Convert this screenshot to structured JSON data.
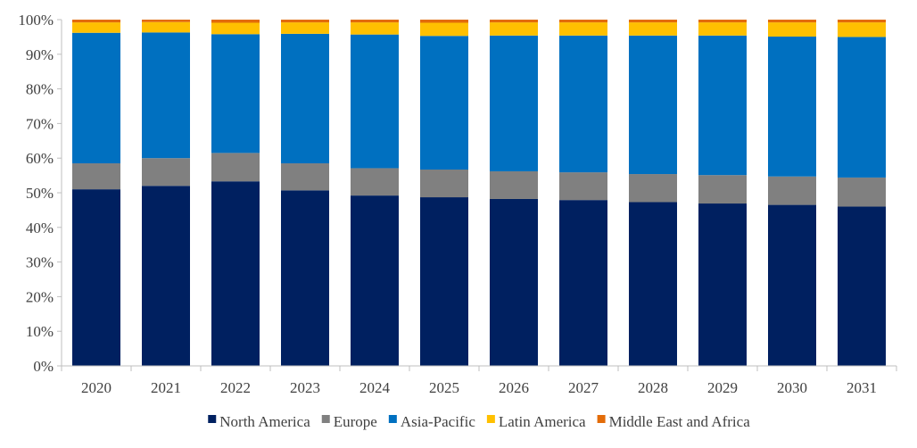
{
  "chart_data": {
    "type": "bar",
    "stacked": true,
    "normalized": true,
    "title": "",
    "xlabel": "",
    "ylabel": "",
    "ylim": [
      0,
      100
    ],
    "y_ticks": [
      "0%",
      "10%",
      "20%",
      "30%",
      "40%",
      "50%",
      "60%",
      "70%",
      "80%",
      "90%",
      "100%"
    ],
    "categories": [
      "2020",
      "2021",
      "2022",
      "2023",
      "2024",
      "2025",
      "2026",
      "2027",
      "2028",
      "2029",
      "2030",
      "2031"
    ],
    "series": [
      {
        "name": "North America",
        "color": "#002060",
        "values": [
          51.0,
          52.0,
          53.3,
          50.7,
          49.2,
          48.7,
          48.2,
          47.9,
          47.3,
          46.9,
          46.5,
          46.0
        ]
      },
      {
        "name": "Europe",
        "color": "#808080",
        "values": [
          7.5,
          8.0,
          8.2,
          7.8,
          7.9,
          8.0,
          8.0,
          8.0,
          8.1,
          8.2,
          8.2,
          8.4
        ]
      },
      {
        "name": "Asia-Pacific",
        "color": "#0070C0",
        "values": [
          37.7,
          36.3,
          34.3,
          37.4,
          38.6,
          38.6,
          39.2,
          39.5,
          40.0,
          40.3,
          40.4,
          40.6
        ]
      },
      {
        "name": "Latin America",
        "color": "#FFC000",
        "values": [
          3.0,
          3.0,
          3.3,
          3.3,
          3.5,
          3.8,
          3.8,
          3.8,
          3.8,
          3.8,
          4.1,
          4.2
        ]
      },
      {
        "name": "Middle East and Africa",
        "color": "#E36C09",
        "values": [
          0.8,
          0.7,
          0.9,
          0.8,
          0.8,
          0.9,
          0.8,
          0.8,
          0.8,
          0.8,
          0.8,
          0.8
        ]
      }
    ],
    "grid": false,
    "legend_position": "bottom"
  }
}
